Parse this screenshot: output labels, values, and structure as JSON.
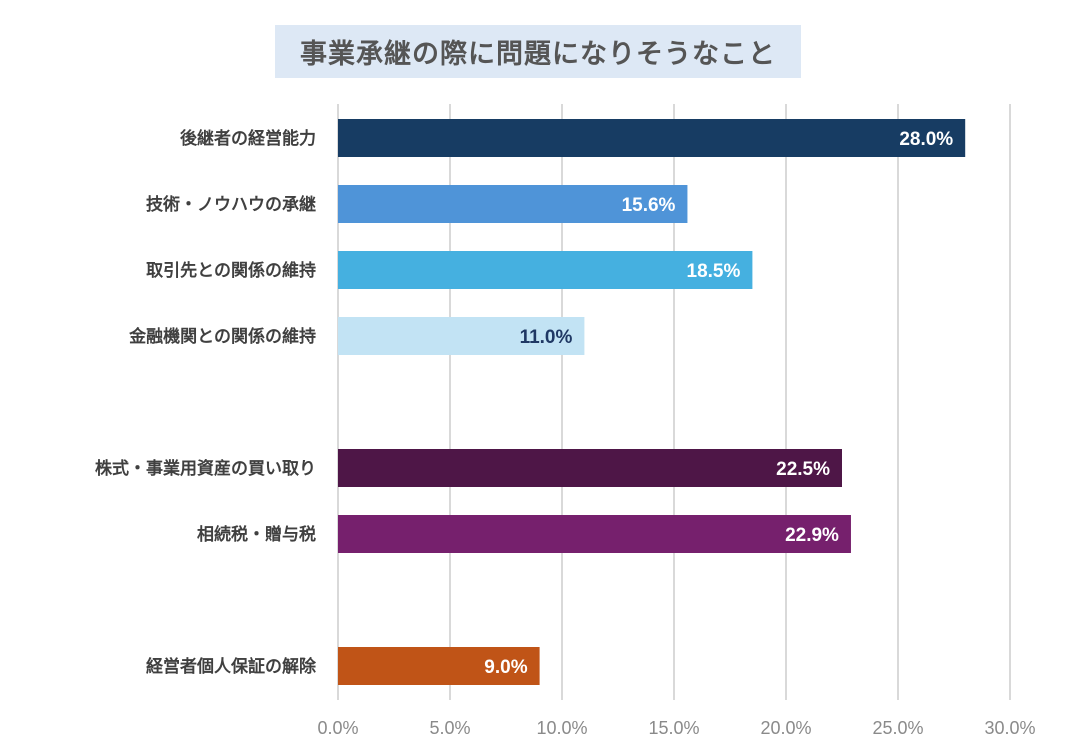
{
  "chart_data": {
    "type": "bar",
    "orientation": "horizontal",
    "title": "事業承継の際に問題になりそうなこと",
    "categories": [
      "後継者の経営能力",
      "技術・ノウハウの承継",
      "取引先との関係の維持",
      "金融機関との関係の維持",
      "株式・事業用資産の買い取り",
      "相続税・贈与税",
      "経営者個人保証の解除"
    ],
    "values": [
      28.0,
      15.6,
      18.5,
      11.0,
      22.5,
      22.9,
      9.0
    ],
    "data_labels": [
      "28.0%",
      "15.6%",
      "18.5%",
      "11.0%",
      "22.5%",
      "22.9%",
      "9.0%"
    ],
    "colors": [
      "#173c63",
      "#4f94d8",
      "#45b0e0",
      "#c2e3f4",
      "#4e1647",
      "#76206d",
      "#c05417"
    ],
    "label_colors": [
      "#ffffff",
      "#ffffff",
      "#ffffff",
      "#1f3864",
      "#ffffff",
      "#ffffff",
      "#ffffff"
    ],
    "xlim": [
      0,
      30
    ],
    "xticks": [
      "0.0%",
      "5.0%",
      "10.0%",
      "15.0%",
      "20.0%",
      "25.0%",
      "30.0%"
    ],
    "xlabel": "",
    "ylabel": "",
    "grid": "vertical",
    "legend": "none"
  }
}
